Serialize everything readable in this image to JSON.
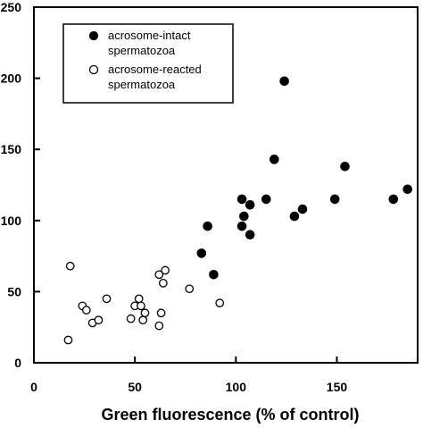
{
  "chart_data": {
    "type": "scatter",
    "xlabel": "Green fluorescence (% of control)",
    "ylabel": "",
    "xlim": [
      0,
      190
    ],
    "ylim": [
      0,
      250
    ],
    "x_ticks": [
      0,
      50,
      100,
      150
    ],
    "y_ticks": [
      0,
      50,
      100,
      150,
      200,
      250
    ],
    "x_tick_labels": [
      "0",
      "50",
      "100",
      "150"
    ],
    "y_tick_labels": [
      "0",
      "50",
      "100",
      "150",
      "200",
      "250"
    ],
    "grid": false,
    "legend_position": "top-left",
    "series": [
      {
        "name": "acrosome-intact spermatozoa",
        "legend_lines": [
          "acrosome-intact",
          "spermatozoa"
        ],
        "marker": "filled-circle",
        "points": [
          [
            124,
            198
          ],
          [
            119,
            143
          ],
          [
            154,
            138
          ],
          [
            115,
            115
          ],
          [
            103,
            115
          ],
          [
            107,
            111
          ],
          [
            133,
            108
          ],
          [
            129,
            103
          ],
          [
            149,
            115
          ],
          [
            178,
            115
          ],
          [
            185,
            122
          ],
          [
            104,
            103
          ],
          [
            103,
            96
          ],
          [
            107,
            90
          ],
          [
            86,
            96
          ],
          [
            83,
            77
          ],
          [
            89,
            62
          ]
        ]
      },
      {
        "name": "acrosome-reacted spermatozoa",
        "legend_lines": [
          "acrosome-reacted",
          "spermatozoa"
        ],
        "marker": "open-circle",
        "points": [
          [
            18,
            68
          ],
          [
            17,
            16
          ],
          [
            24,
            40
          ],
          [
            26,
            37
          ],
          [
            29,
            28
          ],
          [
            32,
            30
          ],
          [
            36,
            45
          ],
          [
            48,
            31
          ],
          [
            50,
            40
          ],
          [
            52,
            45
          ],
          [
            53,
            40
          ],
          [
            54,
            30
          ],
          [
            55,
            35
          ],
          [
            62,
            26
          ],
          [
            63,
            35
          ],
          [
            62,
            62
          ],
          [
            65,
            65
          ],
          [
            64,
            56
          ],
          [
            77,
            52
          ],
          [
            92,
            42
          ]
        ]
      }
    ]
  }
}
